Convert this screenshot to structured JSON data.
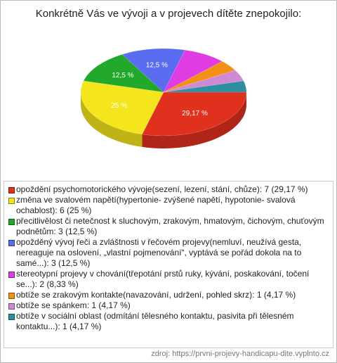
{
  "chart_data": {
    "type": "pie3d",
    "title": "Konkrétně Vás ve vývoji a v projevech dítěte znepokojilo:",
    "categories": [
      "opoždění psychomotorického vývoje(sezení, lezení, stání, chůze): 7 (29,17 %)",
      "změna ve svalovém napětí(hypertonie- zvýšené napětí, hypotonie- svalová ochablost): 6 (25 %)",
      "přecitlivělost či netečnost k sluchovým, zrakovým, hmatovým, čichovým, chuťovým podnětům: 3 (12,5 %)",
      "opožděný vývoj řeči a zvláštnosti v řečovém projevy(nemluví, neužívá gesta, nereaguje na oslovení, „vlastní pojmenování“, vyptává se pořád dokola na to samé...): 3 (12,5 %)",
      "stereotypní projevy v chování(třepotání prstů ruky, kývání, poskakování, točení se...): 2 (8,33 %)",
      "obtíže se zrakovým kontakte(navazování, udržení, pohled skrz): 1 (4,17 %)",
      "obtíže se spánkem: 1 (4,17 %)",
      "obtíže v sociální oblast (odmítání tělesného kontaktu, pasivita při tělesném kontaktu...): 1 (4,17 %)"
    ],
    "values": [
      29.17,
      25,
      12.5,
      12.5,
      8.33,
      4.17,
      4.17,
      4.17
    ],
    "value_labels": [
      "29,17 %",
      "25 %",
      "12,5 %",
      "12,5 %",
      null,
      null,
      null,
      null
    ],
    "colors": [
      "#e0301e",
      "#f5e51c",
      "#22a92c",
      "#5a6cf0",
      "#e03ce4",
      "#f29018",
      "#cf8ad4",
      "#2e8fa2"
    ],
    "source": "zdroj: https://prvni-projevy-handicapu-dite.vyplnto.cz"
  }
}
